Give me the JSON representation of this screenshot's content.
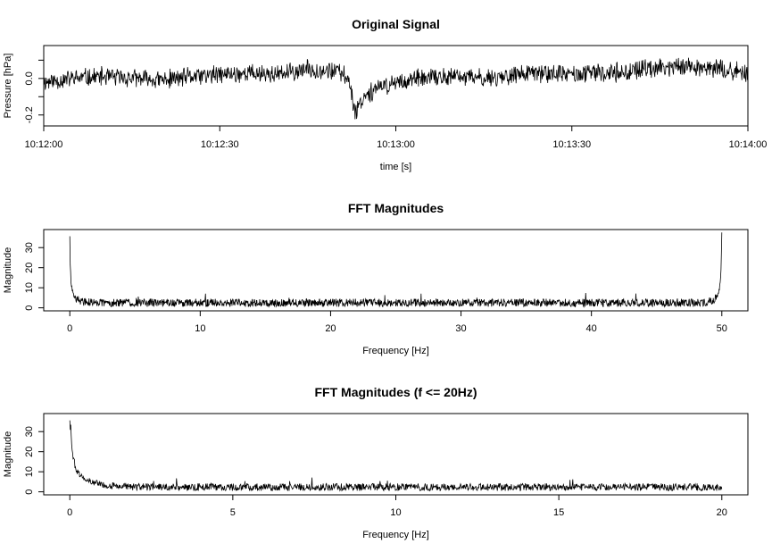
{
  "chart_data": [
    {
      "type": "line",
      "title": "Original Signal",
      "xlabel": "time [s]",
      "ylabel": "Pressure [hPa]",
      "x_axis": "time",
      "x_ticks": [
        "10:12:00",
        "10:12:30",
        "10:13:00",
        "10:13:30",
        "10:14:00"
      ],
      "y_ticks": [
        -0.2,
        0.0
      ],
      "y_tick_labels": [
        "-0.2",
        "0.0"
      ],
      "y_extra_ticks": [
        -0.1,
        0.1
      ],
      "xlim": [
        "10:12:00",
        "10:14:00"
      ],
      "ylim": [
        -0.26,
        0.18
      ],
      "series": [
        {
          "points": [
            [
              "10:12:00",
              -0.02
            ],
            [
              "10:12:05",
              0.0
            ],
            [
              "10:12:10",
              0.01
            ],
            [
              "10:12:15",
              0.0
            ],
            [
              "10:12:20",
              -0.01
            ],
            [
              "10:12:25",
              0.01
            ],
            [
              "10:12:30",
              0.02
            ],
            [
              "10:12:35",
              0.03
            ],
            [
              "10:12:40",
              0.02
            ],
            [
              "10:12:45",
              0.05
            ],
            [
              "10:12:50",
              0.04
            ],
            [
              "10:12:52",
              0.0
            ],
            [
              "10:12:53",
              -0.18
            ],
            [
              "10:12:55",
              -0.08
            ],
            [
              "10:13:00",
              -0.02
            ],
            [
              "10:13:05",
              0.0
            ],
            [
              "10:13:10",
              0.01
            ],
            [
              "10:13:15",
              0.0
            ],
            [
              "10:13:20",
              0.02
            ],
            [
              "10:13:25",
              0.03
            ],
            [
              "10:13:30",
              0.02
            ],
            [
              "10:13:35",
              0.03
            ],
            [
              "10:13:40",
              0.04
            ],
            [
              "10:13:45",
              0.06
            ],
            [
              "10:13:50",
              0.07
            ],
            [
              "10:13:55",
              0.05
            ],
            [
              "10:14:00",
              0.03
            ]
          ],
          "noise_amplitude": 0.05
        }
      ],
      "grid": false
    },
    {
      "type": "line",
      "title": "FFT Magnitudes",
      "xlabel": "Frequency [Hz]",
      "ylabel": "Magnitude",
      "x_ticks": [
        0,
        10,
        20,
        30,
        40,
        50
      ],
      "y_ticks": [
        0,
        10,
        20,
        30
      ],
      "xlim": [
        -2,
        52
      ],
      "ylim": [
        -1.5,
        39
      ],
      "series": [
        {
          "points": [
            [
              0.0,
              38
            ],
            [
              0.02,
              30
            ],
            [
              0.1,
              14
            ],
            [
              0.25,
              8
            ],
            [
              0.5,
              5
            ],
            [
              1.0,
              3.5
            ],
            [
              2.0,
              3
            ],
            [
              5,
              3
            ],
            [
              10,
              3
            ],
            [
              15,
              3
            ],
            [
              20,
              3
            ],
            [
              25,
              3
            ],
            [
              30,
              3
            ],
            [
              35,
              3
            ],
            [
              40,
              3
            ],
            [
              45,
              3
            ],
            [
              48,
              3
            ],
            [
              49,
              3.5
            ],
            [
              49.5,
              5
            ],
            [
              49.75,
              8
            ],
            [
              49.9,
              14
            ],
            [
              49.98,
              30
            ],
            [
              50.0,
              38
            ]
          ],
          "noise_amplitude": 2.5
        }
      ],
      "grid": false
    },
    {
      "type": "line",
      "title": "FFT Magnitudes (f <= 20Hz)",
      "xlabel": "Frequency [Hz]",
      "ylabel": "Magnitude",
      "x_ticks": [
        0,
        5,
        10,
        15,
        20
      ],
      "y_ticks": [
        0,
        10,
        20,
        30
      ],
      "xlim": [
        -0.8,
        20.8
      ],
      "ylim": [
        -1.5,
        39
      ],
      "series": [
        {
          "points": [
            [
              0.0,
              38
            ],
            [
              0.05,
              30
            ],
            [
              0.1,
              20
            ],
            [
              0.2,
              12
            ],
            [
              0.4,
              8
            ],
            [
              0.6,
              6
            ],
            [
              1.0,
              4
            ],
            [
              1.5,
              3.5
            ],
            [
              2.0,
              3
            ],
            [
              5,
              3
            ],
            [
              10,
              3
            ],
            [
              15,
              3
            ],
            [
              20,
              3
            ]
          ],
          "noise_amplitude": 2.3
        }
      ],
      "grid": false
    }
  ]
}
